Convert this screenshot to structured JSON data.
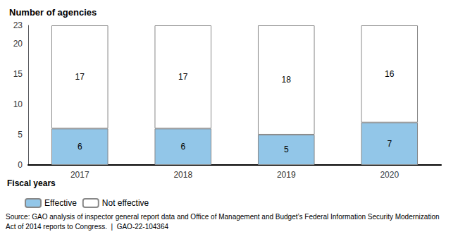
{
  "chart_data": {
    "type": "bar",
    "title": "Number of agencies",
    "xlabel": "Fiscal years",
    "categories": [
      "2017",
      "2018",
      "2019",
      "2020"
    ],
    "series": [
      {
        "name": "Effective",
        "color": "#92C6E8",
        "values": [
          6,
          6,
          5,
          7
        ]
      },
      {
        "name": "Not effective",
        "color": "#FFFFFF",
        "values": [
          17,
          17,
          18,
          16
        ]
      }
    ],
    "stacked": true,
    "data_labels": true,
    "grid": false,
    "legend": "bottom",
    "ylim": [
      0,
      23
    ],
    "yticks": [
      0,
      5,
      10,
      15,
      20,
      23
    ],
    "annotations": [
      "Source: GAO analysis of inspector general report data and Office of Management and Budget’s Federal Information Security Modernization Act of 2014 reports to Congress.  |  GAO-22-104364"
    ]
  }
}
